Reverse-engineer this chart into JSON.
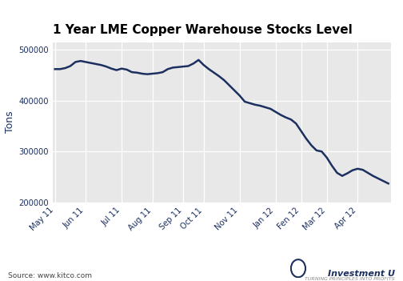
{
  "title": "1 Year LME Copper Warehouse Stocks Level",
  "ylabel": "Tons",
  "source_text": "Source: www.kitco.com",
  "line_color": "#1c3060",
  "fig_bg_color": "#ffffff",
  "plot_bg_color": "#e8e8e8",
  "ylim": [
    200000,
    515000
  ],
  "yticks": [
    200000,
    300000,
    400000,
    500000
  ],
  "x_labels": [
    "May 11",
    "Jun 11",
    "Jul 11",
    "Aug 11",
    "Sep 11",
    "Oct 11",
    "Nov 11",
    "Jan 12",
    "Fen 12",
    "Mar 12",
    "Apr 12"
  ],
  "tick_label_color": "#1c3060",
  "ylabel_color": "#1c3060",
  "y_values": [
    462000,
    462000,
    464000,
    468000,
    476000,
    478000,
    476000,
    474000,
    472000,
    470000,
    467000,
    463000,
    460000,
    463000,
    461000,
    456000,
    455000,
    453000,
    452000,
    453000,
    454000,
    456000,
    462000,
    465000,
    466000,
    467000,
    468000,
    473000,
    480000,
    470000,
    462000,
    455000,
    448000,
    440000,
    430000,
    420000,
    410000,
    398000,
    395000,
    392000,
    390000,
    387000,
    384000,
    378000,
    372000,
    367000,
    363000,
    355000,
    340000,
    325000,
    312000,
    302000,
    300000,
    288000,
    272000,
    258000,
    252000,
    257000,
    263000,
    266000,
    264000,
    258000,
    252000,
    247000,
    242000,
    237000
  ]
}
